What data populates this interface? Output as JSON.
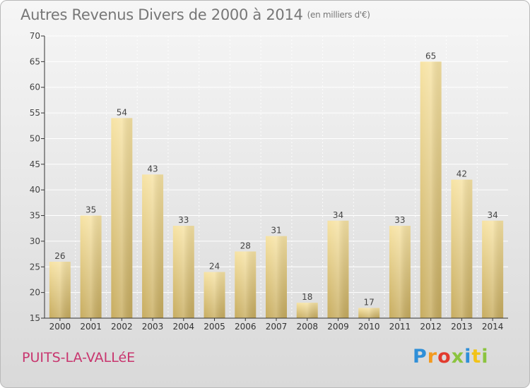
{
  "header": {
    "title": "Autres Revenus Divers de 2000 à 2014",
    "unit": "(en milliers d'€)"
  },
  "footer": {
    "commune": "PUITS-LA-VALLéE",
    "logo_letters": [
      "P",
      "r",
      "o",
      "x",
      "i",
      "t",
      "i"
    ]
  },
  "colors": {
    "bar_light": "#f7e3a4",
    "bar_dark": "#c7ac5f",
    "commune_text": "#c8356e",
    "axis": "#333333",
    "grid": "#ffffff"
  },
  "chart_data": {
    "type": "bar",
    "title": "Autres Revenus Divers de 2000 à 2014",
    "subtitle": "(en milliers d'€)",
    "xlabel": "",
    "ylabel": "",
    "categories": [
      "2000",
      "2001",
      "2002",
      "2003",
      "2004",
      "2005",
      "2006",
      "2007",
      "2008",
      "2009",
      "2010",
      "2011",
      "2012",
      "2013",
      "2014"
    ],
    "values": [
      26,
      35,
      54,
      43,
      33,
      24,
      28,
      31,
      18,
      34,
      17,
      33,
      65,
      42,
      34
    ],
    "ylim": [
      15,
      70
    ],
    "yticks": [
      15,
      20,
      25,
      30,
      35,
      40,
      45,
      50,
      55,
      60,
      65,
      70
    ],
    "grid": true,
    "legend": "none"
  }
}
